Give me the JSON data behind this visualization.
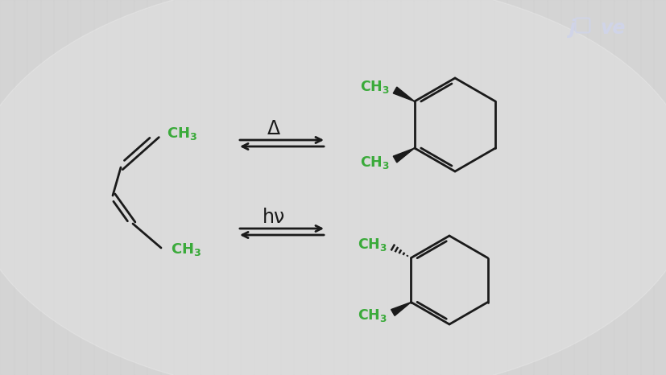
{
  "bg_color": "#d5d5d5",
  "mc": "#1a1a1a",
  "gc": "#3aaa3a",
  "jove_color": "#d0d4e8",
  "delta": "Δ",
  "hv": "hν",
  "lw": 2.0
}
